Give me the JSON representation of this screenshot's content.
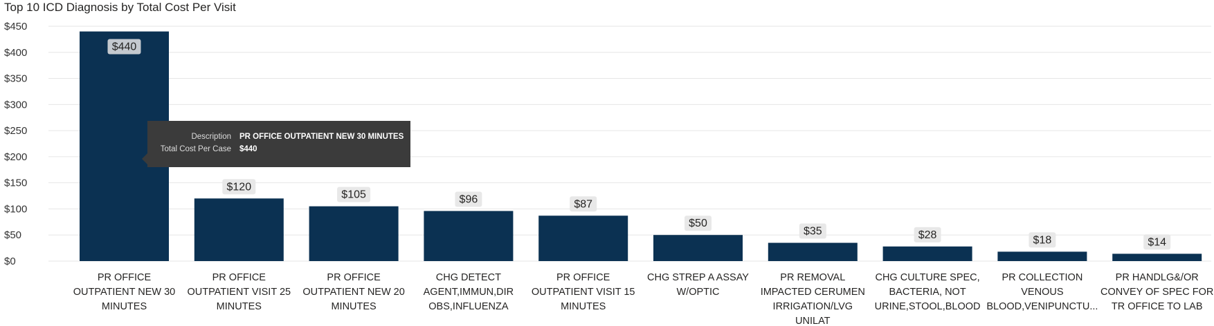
{
  "title": "Top 10 ICD Diagnosis by Total Cost Per Visit",
  "colors": {
    "bar": "#0b3152",
    "grid": "#e6e6e6",
    "label_bg": "#e8e8e8",
    "label_bg_selected": "#c4c9cf",
    "tooltip_bg": "#3b3b3b"
  },
  "tooltip": {
    "rows": [
      {
        "key": "Description",
        "value": "PR OFFICE OUTPATIENT NEW 30 MINUTES"
      },
      {
        "key": "Total Cost Per Case",
        "value": "$440"
      }
    ]
  },
  "chart_data": {
    "type": "bar",
    "title": "Top 10 ICD Diagnosis by Total Cost Per Visit",
    "categories": [
      [
        "PR OFFICE",
        "OUTPATIENT NEW 30",
        "MINUTES"
      ],
      [
        "PR OFFICE",
        "OUTPATIENT VISIT 25",
        "MINUTES"
      ],
      [
        "PR OFFICE",
        "OUTPATIENT NEW 20",
        "MINUTES"
      ],
      [
        "CHG DETECT",
        "AGENT,IMMUN,DIR",
        "OBS,INFLUENZA"
      ],
      [
        "PR OFFICE",
        "OUTPATIENT VISIT 15",
        "MINUTES"
      ],
      [
        "CHG STREP A ASSAY",
        "W/OPTIC"
      ],
      [
        "PR REMOVAL",
        "IMPACTED CERUMEN",
        "IRRIGATION/LVG",
        "UNILAT"
      ],
      [
        "CHG CULTURE SPEC,",
        "BACTERIA, NOT",
        "URINE,STOOL,BLOOD"
      ],
      [
        "PR COLLECTION",
        "VENOUS",
        "BLOOD,VENIPUNCTU..."
      ],
      [
        "PR HANDLG&/OR",
        "CONVEY OF SPEC FOR",
        "TR OFFICE TO LAB"
      ]
    ],
    "values": [
      440,
      120,
      105,
      96,
      87,
      50,
      35,
      28,
      18,
      14
    ],
    "data_labels": [
      "$440",
      "$120",
      "$105",
      "$96",
      "$87",
      "$50",
      "$35",
      "$28",
      "$18",
      "$14"
    ],
    "y_ticks": [
      0,
      50,
      100,
      150,
      200,
      250,
      300,
      350,
      400,
      450
    ],
    "y_tick_labels": [
      "$0",
      "$50",
      "$100",
      "$150",
      "$200",
      "$250",
      "$300",
      "$350",
      "$400",
      "$450"
    ],
    "ylim": [
      0,
      450
    ],
    "grid": true,
    "xlabel": "",
    "ylabel": ""
  }
}
